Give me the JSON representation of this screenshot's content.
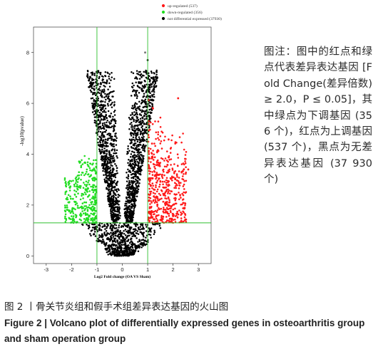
{
  "chart_data": {
    "type": "scatter",
    "title": "",
    "xlabel": "Log2 Fold change (OA VS Sham)",
    "ylabel": "-log10(pvalue)",
    "xlim": [
      -3.5,
      3.5
    ],
    "ylim": [
      -0.3,
      9
    ],
    "x_ticks": [
      -3,
      -2,
      -1,
      0,
      1,
      2,
      3
    ],
    "y_ticks": [
      0,
      2,
      4,
      6,
      8
    ],
    "thresholds": {
      "fold_change_lines": [
        -1,
        1
      ],
      "pvalue_line": 1.3
    },
    "legend_position": "top-center",
    "series": [
      {
        "name": "up-regulated (537)",
        "color": "#ff1a1a",
        "count": 537,
        "x_range": [
          1,
          2.6
        ],
        "y_range": [
          1.3,
          6.2
        ]
      },
      {
        "name": "down-regulated (356)",
        "color": "#22dd22",
        "count": 356,
        "x_range": [
          -2.3,
          -1
        ],
        "y_range": [
          1.3,
          4.3
        ]
      },
      {
        "name": "not differential expressed (37930)",
        "color": "#000000",
        "count": 37930,
        "x_range": [
          -1.7,
          1.7
        ],
        "y_range": [
          0,
          8
        ]
      }
    ],
    "highlight_points": [
      {
        "x": 0.9,
        "y": 8.0,
        "color": "#707070"
      },
      {
        "x": 1.0,
        "y": 7.7,
        "color": "#000000"
      },
      {
        "x": -0.9,
        "y": 5.0,
        "color": "#707070"
      },
      {
        "x": 2.2,
        "y": 6.2,
        "color": "#ff1a1a"
      },
      {
        "x": 2.6,
        "y": 3.4,
        "color": "#ff1a1a"
      }
    ]
  },
  "note": {
    "text": "图注：图中的红点和绿点代表差异表达基因 [Fold Change(差异倍数) ≥ 2.0，P ≤ 0.05]，其中绿点为下调基因 (356 个)，红点为上调基因 (537 个)，黑点为无差异表达基因 (37 930 个)"
  },
  "caption": {
    "cn": "图 2 丨骨关节炎组和假手术组差异表达基因的火山图",
    "en": "Figure 2 | Volcano plot of differentially expressed genes in osteoarthritis group and sham operation group"
  }
}
